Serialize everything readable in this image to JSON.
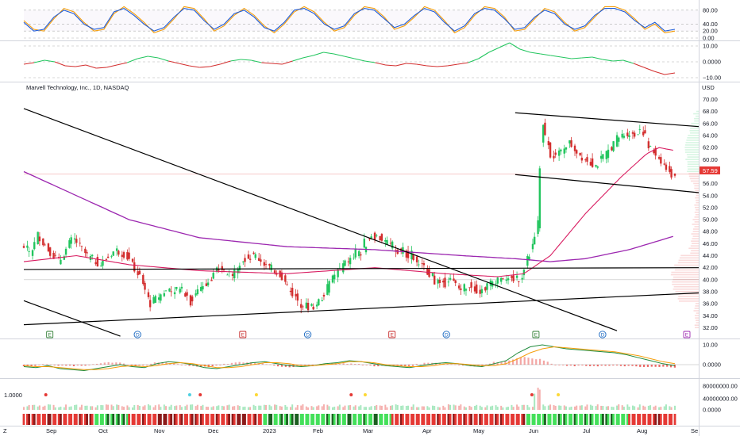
{
  "chart_data": {
    "type": "candlestick",
    "title": "Marvell Technology, Inc., 1D, NASDAQ",
    "currency": "USD",
    "last_price": "57.59",
    "colors": {
      "up": "#22c55e",
      "down": "#d32f2f",
      "ma_fast": "#d81b60",
      "ma_slow": "#9c27b0",
      "trendline": "#000000"
    },
    "price_axis": {
      "labels": [
        "70.00",
        "68.00",
        "66.00",
        "64.00",
        "62.00",
        "60.00",
        "58.00",
        "56.00",
        "54.00",
        "52.00",
        "50.00",
        "48.00",
        "46.00",
        "44.00",
        "42.00",
        "40.00",
        "38.00",
        "36.00",
        "34.00",
        "32.00"
      ],
      "range": [
        31,
        71
      ]
    },
    "x_axis": {
      "labels": [
        "Sep",
        "Oct",
        "Nov",
        "Dec",
        "2023",
        "Feb",
        "Mar",
        "Apr",
        "May",
        "Jun",
        "Jul",
        "Aug",
        "Se"
      ],
      "start_label": "Z"
    },
    "price_series": [
      [
        0,
        45.5
      ],
      [
        4,
        44.5
      ],
      [
        8,
        47.5
      ],
      [
        14,
        45
      ],
      [
        20,
        43
      ],
      [
        28,
        47
      ],
      [
        36,
        44
      ],
      [
        44,
        42.5
      ],
      [
        52,
        45
      ],
      [
        58,
        44.2
      ],
      [
        66,
        40.5
      ],
      [
        72,
        36
      ],
      [
        80,
        38
      ],
      [
        88,
        38.5
      ],
      [
        96,
        37.2
      ],
      [
        104,
        39.5
      ],
      [
        112,
        42
      ],
      [
        118,
        40.5
      ],
      [
        124,
        43.5
      ],
      [
        132,
        44
      ],
      [
        140,
        42
      ],
      [
        146,
        41
      ],
      [
        152,
        38
      ],
      [
        158,
        36
      ],
      [
        164,
        35.2
      ],
      [
        170,
        37
      ],
      [
        176,
        40.5
      ],
      [
        184,
        43
      ],
      [
        192,
        44.5
      ],
      [
        198,
        47.5
      ],
      [
        204,
        46.8
      ],
      [
        210,
        45.2
      ],
      [
        216,
        44.8
      ],
      [
        224,
        43
      ],
      [
        230,
        41.5
      ],
      [
        236,
        39.5
      ],
      [
        242,
        40.3
      ],
      [
        248,
        38.5
      ],
      [
        254,
        39.2
      ],
      [
        260,
        38
      ],
      [
        266,
        39.5
      ],
      [
        272,
        40.6
      ],
      [
        278,
        40
      ],
      [
        284,
        40.8
      ],
      [
        290,
        46
      ],
      [
        293,
        49.5
      ],
      [
        295,
        66.5
      ],
      [
        300,
        61
      ],
      [
        304,
        60.5
      ],
      [
        310,
        63
      ],
      [
        318,
        60.5
      ],
      [
        326,
        59
      ],
      [
        332,
        61
      ],
      [
        338,
        63.5
      ],
      [
        344,
        64.5
      ],
      [
        348,
        64
      ],
      [
        352,
        65.5
      ],
      [
        356,
        62
      ],
      [
        360,
        61
      ],
      [
        364,
        59.5
      ],
      [
        368,
        57.5
      ],
      [
        371,
        57.5
      ]
    ],
    "ma_fast_series": [
      [
        0,
        43
      ],
      [
        30,
        44
      ],
      [
        60,
        42.5
      ],
      [
        100,
        41.5
      ],
      [
        150,
        41
      ],
      [
        200,
        42
      ],
      [
        240,
        41
      ],
      [
        270,
        40.5
      ],
      [
        285,
        41
      ],
      [
        300,
        44
      ],
      [
        320,
        51
      ],
      [
        340,
        57
      ],
      [
        355,
        61
      ],
      [
        362,
        62
      ],
      [
        371,
        61.5
      ]
    ],
    "ma_slow_series": [
      [
        0,
        58
      ],
      [
        30,
        54
      ],
      [
        60,
        50
      ],
      [
        100,
        47
      ],
      [
        150,
        45.5
      ],
      [
        200,
        45
      ],
      [
        250,
        44
      ],
      [
        280,
        43.5
      ],
      [
        300,
        43
      ],
      [
        320,
        43.5
      ],
      [
        345,
        45
      ],
      [
        371,
        47.3
      ]
    ],
    "trendlines": [
      {
        "name": "descending-trendline",
        "from": [
          0,
          68.5
        ],
        "to": [
          338,
          31.5
        ]
      },
      {
        "name": "horizontal-support-line",
        "from": [
          0,
          41.7
        ],
        "to": [
          371,
          42
        ]
      },
      {
        "name": "rising-support-line",
        "from": [
          0,
          32.5
        ],
        "to": [
          371,
          37.8
        ]
      },
      {
        "name": "lower-left-trendline",
        "from": [
          0,
          36.5
        ],
        "to": [
          55,
          30.6
        ]
      },
      {
        "name": "channel-upper-line",
        "from": [
          280,
          67.8
        ],
        "to": [
          371,
          65.5
        ]
      },
      {
        "name": "channel-lower-line",
        "from": [
          280,
          57.5
        ],
        "to": [
          371,
          54.5
        ]
      }
    ],
    "events": [
      {
        "label": "E",
        "x": 8,
        "color": "#2e7d32"
      },
      {
        "label": "D",
        "x": 58,
        "color": "#1565c0"
      },
      {
        "label": "E",
        "x": 118,
        "color": "#c62828"
      },
      {
        "label": "D",
        "x": 155,
        "color": "#1565c0"
      },
      {
        "label": "E",
        "x": 203,
        "color": "#c62828"
      },
      {
        "label": "D",
        "x": 234,
        "color": "#1565c0"
      },
      {
        "label": "E",
        "x": 285,
        "color": "#2e7d32"
      },
      {
        "label": "D",
        "x": 323,
        "color": "#1565c0"
      },
      {
        "label": "E",
        "x": 371,
        "color": "#9c27b0"
      }
    ],
    "stoch_rsi": {
      "axis_labels": [
        "80.00",
        "40.00",
        "20.00",
        "0.00"
      ],
      "blue": [
        45,
        20,
        25,
        60,
        80,
        70,
        40,
        25,
        30,
        75,
        85,
        65,
        40,
        20,
        30,
        60,
        85,
        80,
        50,
        25,
        40,
        70,
        80,
        60,
        30,
        20,
        45,
        80,
        85,
        70,
        40,
        25,
        35,
        70,
        85,
        80,
        55,
        30,
        40,
        65,
        85,
        75,
        45,
        20,
        35,
        70,
        85,
        80,
        55,
        25,
        30,
        60,
        80,
        70,
        40,
        25,
        35,
        65,
        85,
        85,
        75,
        50,
        30,
        45,
        20,
        25
      ],
      "orange": [
        50,
        25,
        20,
        55,
        85,
        75,
        45,
        20,
        25,
        70,
        90,
        70,
        45,
        15,
        25,
        55,
        90,
        85,
        55,
        20,
        35,
        65,
        85,
        65,
        35,
        15,
        40,
        75,
        90,
        75,
        45,
        20,
        30,
        65,
        90,
        85,
        60,
        25,
        35,
        60,
        90,
        80,
        50,
        15,
        30,
        65,
        90,
        85,
        60,
        20,
        25,
        55,
        85,
        75,
        45,
        20,
        30,
        60,
        90,
        90,
        80,
        55,
        25,
        40,
        15,
        20
      ]
    },
    "oscillator_2": {
      "axis_labels": [
        "10.00",
        "0.0000",
        "−10.00"
      ],
      "values": [
        -1.5,
        -0.5,
        1,
        0,
        -2.5,
        -3,
        -2,
        -4,
        -3.5,
        -2,
        -0.5,
        2,
        3.5,
        2.5,
        0.5,
        -1,
        -2.5,
        -3.5,
        -3,
        -1.5,
        0.5,
        1.5,
        1,
        -0.5,
        -1,
        -1.5,
        0.5,
        2.5,
        4,
        6,
        5,
        3.5,
        2,
        0.5,
        -0.5,
        -2,
        -2.5,
        -1,
        -1.5,
        -2.5,
        -3,
        -2.5,
        -1.5,
        -0.5,
        2,
        6,
        9,
        12,
        8,
        6,
        5,
        4,
        3,
        2,
        2.5,
        3,
        1.5,
        0.5,
        1,
        -1,
        -3.5,
        -6,
        -8,
        -7
      ]
    },
    "macd": {
      "axis_labels": [
        "10.00",
        "0.0000"
      ],
      "macd_line": [
        -1,
        -1.5,
        -0.5,
        -2,
        -2.5,
        -3,
        -2,
        -1,
        0,
        -1,
        -1.5,
        0.5,
        1.5,
        1,
        0,
        -1.5,
        -2,
        -1,
        0,
        1,
        1.5,
        0.5,
        -0.5,
        -1,
        -0.5,
        0.5,
        1,
        2,
        1.5,
        0.5,
        -0.5,
        -1,
        -1.5,
        -0.5,
        0.5,
        1,
        0.5,
        -0.5,
        -1,
        0.5,
        2,
        6,
        9,
        10,
        9,
        8,
        7.5,
        7,
        6.5,
        6,
        5,
        3.5,
        2,
        0.5,
        -0.5
      ],
      "signal_line": [
        -0.5,
        -1,
        -1,
        -1.5,
        -2,
        -2.5,
        -2.5,
        -2,
        -1,
        -0.5,
        -1,
        -0.5,
        0.5,
        1,
        0.5,
        -0.5,
        -1.5,
        -1.5,
        -1,
        0,
        1,
        1,
        0.5,
        -0.5,
        -0.5,
        0,
        0.5,
        1.5,
        1.5,
        1,
        0,
        -0.5,
        -1,
        -1,
        -0.5,
        0.5,
        0.5,
        0,
        -0.5,
        -0.5,
        0.5,
        3,
        6,
        8,
        9,
        8.5,
        8,
        7.5,
        7,
        6.5,
        5.5,
        4.5,
        3,
        1.5,
        0.5
      ]
    },
    "volume": {
      "axis_labels": [
        "80000000.00",
        "40000000.00",
        "0.0000"
      ],
      "left_label": "1.0000",
      "spike_markers": [
        {
          "x": 8,
          "color": "#e53935"
        },
        {
          "x": 90,
          "color": "#4dd0e1"
        },
        {
          "x": 96,
          "color": "#e53935"
        },
        {
          "x": 128,
          "color": "#fdd835"
        },
        {
          "x": 182,
          "color": "#e53935"
        },
        {
          "x": 190,
          "color": "#fdd835"
        },
        {
          "x": 285,
          "color": "#e53935"
        },
        {
          "x": 300,
          "color": "#fdd835"
        }
      ]
    }
  }
}
